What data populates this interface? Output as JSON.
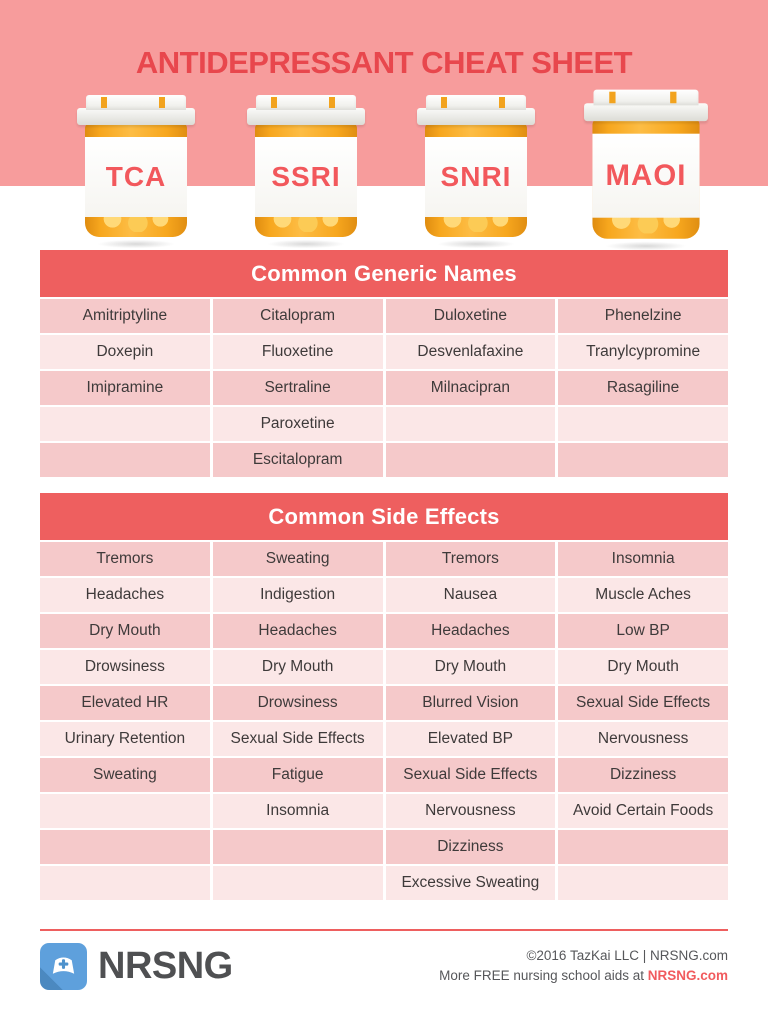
{
  "title": "ANTIDEPRESSANT CHEAT SHEET",
  "bottles": [
    {
      "label": "TCA"
    },
    {
      "label": "SSRI"
    },
    {
      "label": "SNRI"
    },
    {
      "label": "MAOI"
    }
  ],
  "tables": {
    "generic": {
      "header": "Common Generic Names",
      "rows": [
        [
          "Amitriptyline",
          "Citalopram",
          "Duloxetine",
          "Phenelzine"
        ],
        [
          "Doxepin",
          "Fluoxetine",
          "Desvenlafaxine",
          "Tranylcypromine"
        ],
        [
          "Imipramine",
          "Sertraline",
          "Milnacipran",
          "Rasagiline"
        ],
        [
          "",
          "Paroxetine",
          "",
          ""
        ],
        [
          "",
          "Escitalopram",
          "",
          ""
        ]
      ]
    },
    "side_effects": {
      "header": "Common Side Effects",
      "rows": [
        [
          "Tremors",
          "Sweating",
          "Tremors",
          "Insomnia"
        ],
        [
          "Headaches",
          "Indigestion",
          "Nausea",
          "Muscle Aches"
        ],
        [
          "Dry Mouth",
          "Headaches",
          "Headaches",
          "Low BP"
        ],
        [
          "Drowsiness",
          "Dry Mouth",
          "Dry Mouth",
          "Dry Mouth"
        ],
        [
          "Elevated HR",
          "Drowsiness",
          "Blurred Vision",
          "Sexual Side Effects"
        ],
        [
          "Urinary Retention",
          "Sexual Side Effects",
          "Elevated BP",
          "Nervousness"
        ],
        [
          "Sweating",
          "Fatigue",
          "Sexual Side Effects",
          "Dizziness"
        ],
        [
          "",
          "Insomnia",
          "Nervousness",
          "Avoid Certain Foods"
        ],
        [
          "",
          "",
          "Dizziness",
          ""
        ],
        [
          "",
          "",
          "Excessive Sweating",
          ""
        ]
      ]
    }
  },
  "footer": {
    "brand": "NRSNG",
    "line1": "©2016 TazKai LLC | NRSNG.com",
    "line2_prefix": "More FREE nursing school aids at ",
    "line2_link": "NRSNG.com"
  },
  "colors": {
    "band_pink": "#F79C9C",
    "title_red": "#E8474D",
    "accent_red": "#EE5F5F",
    "row_dark_pink": "#F5C9CA",
    "row_light_pink": "#FBE7E7",
    "bottle_orange": "#F7A71E",
    "brand_blue": "#5EA0DC",
    "text_dark": "#3E3A3A",
    "footer_gray": "#56575A"
  }
}
